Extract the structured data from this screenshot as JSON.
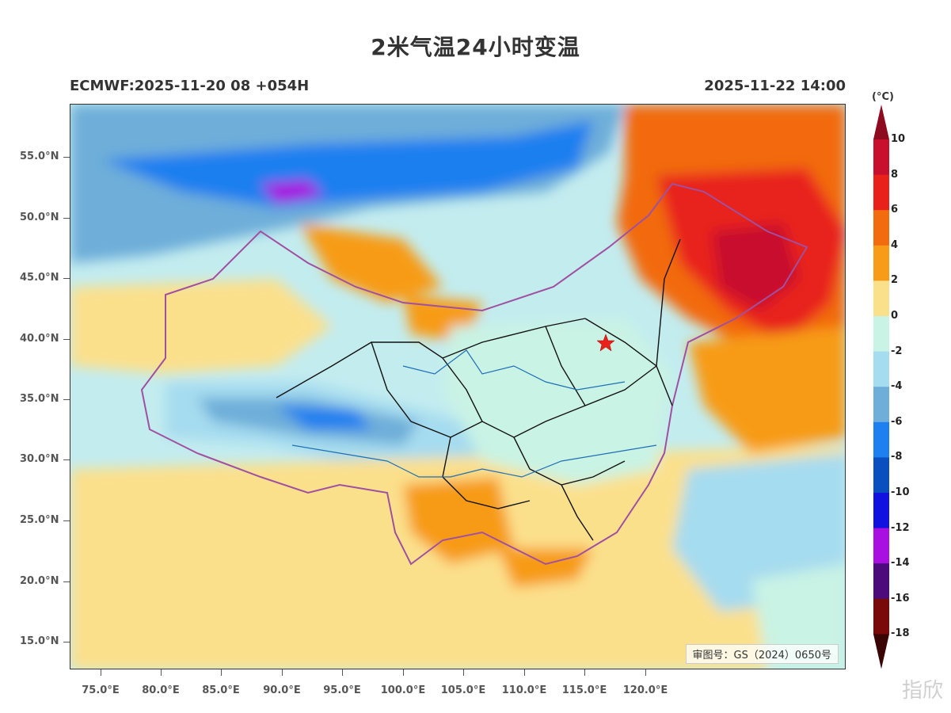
{
  "title": "2米气温24小时变温",
  "model_run": "ECMWF:2025-11-20 08 +054H",
  "valid_time": "2025-11-22 14:00",
  "approval_number": "审图号：GS（2024）0650号",
  "watermark": "指欣",
  "lat_labels": [
    "55.0°N",
    "50.0°N",
    "45.0°N",
    "40.0°N",
    "35.0°N",
    "30.0°N",
    "25.0°N",
    "20.0°N",
    "15.0°N"
  ],
  "lon_labels": [
    "75.0°E",
    "80.0°E",
    "85.0°E",
    "90.0°E",
    "95.0°E",
    "100.0°E",
    "105.0°E",
    "110.0°E",
    "115.0°E",
    "120.0°E"
  ],
  "colorbar": {
    "unit": "(°C)",
    "labels": [
      "10",
      "8",
      "6",
      "4",
      "2",
      "0",
      "-2",
      "-4",
      "-6",
      "-8",
      "-10",
      "-12",
      "-14",
      "-16",
      "-18"
    ],
    "colors": [
      "#8e0a1e",
      "#c8102e",
      "#e8211a",
      "#f26b0f",
      "#f79b18",
      "#fbe08c",
      "#c9f3e4",
      "#a6dcef",
      "#6eaed9",
      "#1e7ff0",
      "#0a4fbf",
      "#1212e0",
      "#a80fe0",
      "#4d0a7a",
      "#7a0a0a",
      "#3a0505"
    ]
  },
  "markers": {
    "capital": "star"
  }
}
